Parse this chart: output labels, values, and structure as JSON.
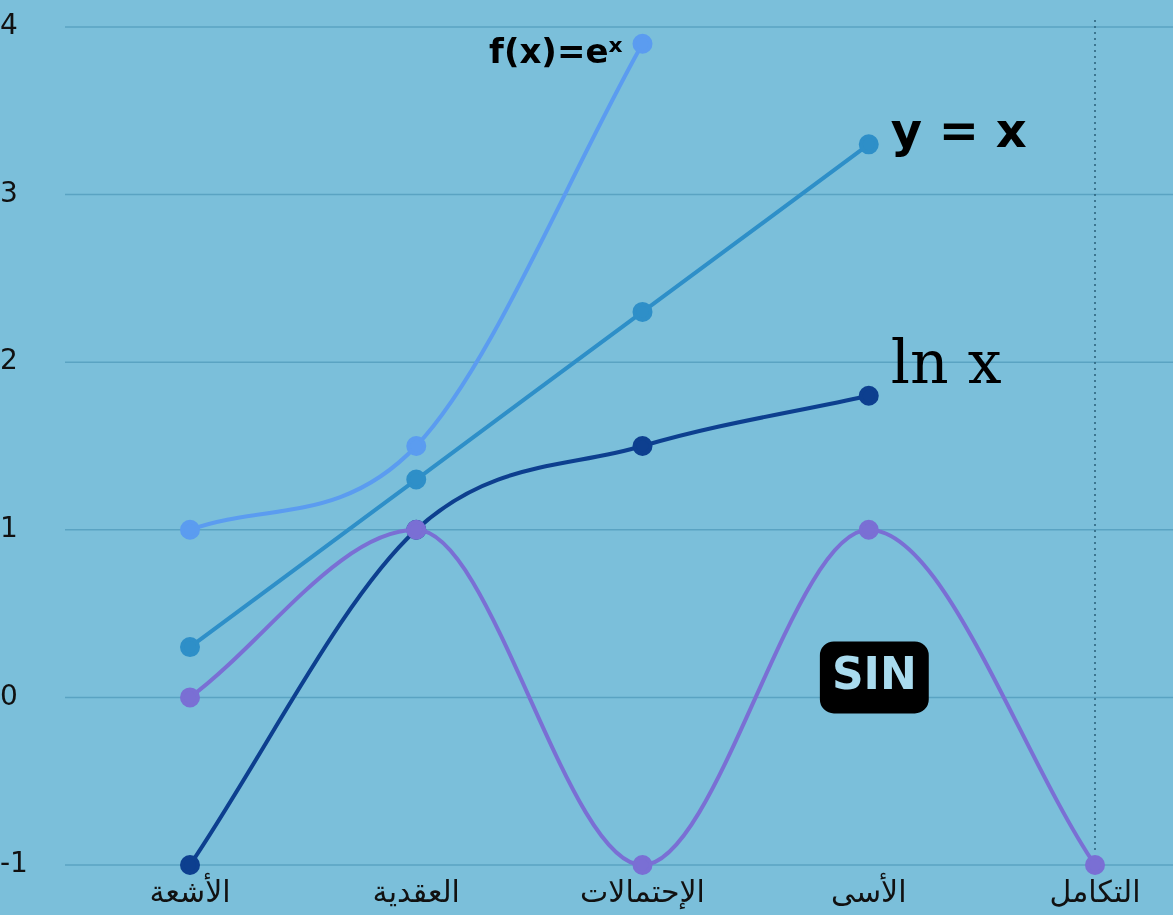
{
  "chart_data": {
    "type": "line",
    "categories": [
      "الأشعة",
      "العقدية",
      "الإحتمالات",
      "الأسى",
      "التكامل"
    ],
    "series": [
      {
        "name": "f(x)=eˣ",
        "color": "#5b9cf0",
        "values": [
          1,
          1.5,
          3.9,
          null,
          null
        ]
      },
      {
        "name": "y = x",
        "color": "#2e8fc8",
        "values": [
          0.3,
          1.3,
          2.3,
          3.3,
          null
        ]
      },
      {
        "name": "ln x",
        "color": "#0d3f8f",
        "values": [
          -1,
          1,
          1.5,
          1.8,
          null
        ]
      },
      {
        "name": "SIN",
        "color": "#7a6fd4",
        "values": [
          0,
          1,
          -1,
          1,
          -1
        ]
      }
    ],
    "ylim": [
      -1,
      4
    ],
    "yticks": [
      -1,
      0,
      1,
      2,
      3,
      4
    ],
    "grid": "y",
    "marker": "circle",
    "line_style": "solid",
    "legend": false,
    "ref_lines": [
      {
        "axis": "x",
        "value": "التكامل",
        "color": "#2a5f78",
        "line_style": "dotted"
      }
    ]
  }
}
